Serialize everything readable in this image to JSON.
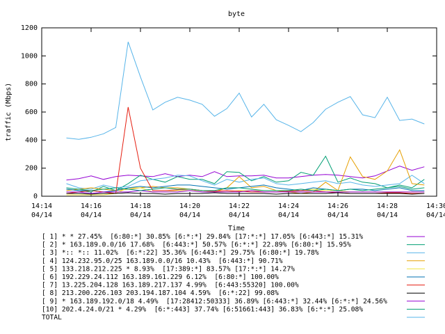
{
  "chart_data": {
    "type": "line",
    "title": "byte",
    "x_label": "Time",
    "y_label": "traffic (Mbps)",
    "x": [
      855,
      855.5,
      856,
      856.5,
      857,
      857.5,
      858,
      858.5,
      859,
      859.5,
      860,
      860.5,
      861,
      861.5,
      862,
      862.5,
      863,
      863.5,
      864,
      864.5,
      865,
      865.5,
      866,
      866.5,
      867,
      867.5,
      868,
      868.5,
      869,
      869.5
    ],
    "xlim": [
      854,
      870
    ],
    "xticks": [
      {
        "value": 854,
        "label": "14:14",
        "date": "04/14"
      },
      {
        "value": 856,
        "label": "14:16",
        "date": "04/14"
      },
      {
        "value": 858,
        "label": "14:18",
        "date": "04/14"
      },
      {
        "value": 860,
        "label": "14:20",
        "date": "04/14"
      },
      {
        "value": 862,
        "label": "14:22",
        "date": "04/14"
      },
      {
        "value": 864,
        "label": "14:24",
        "date": "04/14"
      },
      {
        "value": 866,
        "label": "14:26",
        "date": "04/14"
      },
      {
        "value": 868,
        "label": "14:28",
        "date": "04/14"
      },
      {
        "value": 870,
        "label": "14:30",
        "date": "04/14"
      }
    ],
    "ylim": [
      0,
      1200
    ],
    "yticks": [
      0,
      200,
      400,
      600,
      800,
      1000,
      1200
    ],
    "grid": false,
    "series": [
      {
        "name": "[ 1] * * 27.45%  [6:80:*] 30.85% [6:*:*] 29.84% [17:*:*] 17.05% [6:443:*] 15.31%",
        "color": "#9400d3",
        "values": [
          115,
          125,
          145,
          120,
          140,
          150,
          145,
          140,
          160,
          140,
          150,
          140,
          175,
          140,
          145,
          145,
          150,
          130,
          130,
          140,
          150,
          155,
          150,
          140,
          130,
          145,
          180,
          215,
          185,
          210
        ]
      },
      {
        "name": "[ 2] * 163.189.0.0/16 17.68%  [6:443:*] 50.57% [6:*:*] 22.89% [6:80:*] 15.95%",
        "color": "#009e73",
        "values": [
          50,
          40,
          30,
          70,
          40,
          90,
          150,
          120,
          100,
          140,
          120,
          120,
          90,
          175,
          170,
          110,
          140,
          100,
          110,
          170,
          150,
          285,
          100,
          130,
          100,
          90,
          60,
          80,
          60,
          120
        ]
      },
      {
        "name": "[ 3] *:: *:: 11.02%  [6:*:22] 35.36% [6:443:*] 29.75% [6:80:*] 19.78%",
        "color": "#56b4e9",
        "values": [
          90,
          60,
          50,
          80,
          60,
          70,
          110,
          120,
          130,
          150,
          145,
          110,
          80,
          120,
          100,
          120,
          130,
          90,
          80,
          90,
          100,
          110,
          90,
          100,
          80,
          70,
          80,
          90,
          150,
          90
        ]
      },
      {
        "name": "[ 4] 124.232.95.0/25 163.189.0.0/16 10.43%  [6:443:*] 90.71%",
        "color": "#e69f00",
        "values": [
          40,
          50,
          60,
          50,
          40,
          50,
          60,
          70,
          60,
          60,
          50,
          40,
          30,
          60,
          140,
          60,
          70,
          40,
          30,
          20,
          30,
          100,
          40,
          280,
          140,
          120,
          180,
          330,
          90,
          80
        ]
      },
      {
        "name": "[ 5] 133.218.212.225 * 8.93%  [17:389:*] 83.57% [17:*:*] 14.27%",
        "color": "#f0e442",
        "values": [
          10,
          10,
          10,
          10,
          20,
          60,
          60,
          30,
          30,
          40,
          40,
          40,
          30,
          30,
          40,
          40,
          40,
          40,
          40,
          40,
          50,
          40,
          40,
          30,
          30,
          30,
          30,
          30,
          30,
          30
        ]
      },
      {
        "name": "[ 6] 192.229.24.112 163.189.161.229 6.12%  [6:80:*] 100.00%",
        "color": "#0072b2",
        "values": [
          50,
          40,
          40,
          30,
          40,
          60,
          70,
          60,
          70,
          80,
          80,
          70,
          60,
          50,
          60,
          70,
          80,
          60,
          50,
          40,
          60,
          50,
          40,
          50,
          50,
          40,
          50,
          60,
          40,
          40
        ]
      },
      {
        "name": "[ 7] 13.225.204.128 163.189.217.137 4.99%  [6:443:55320] 100.00%",
        "color": "#e51e10",
        "values": [
          20,
          30,
          40,
          30,
          20,
          635,
          200,
          40,
          40,
          45,
          50,
          40,
          35,
          40,
          35,
          30,
          30,
          30,
          35,
          40,
          40,
          30,
          25,
          20,
          20,
          20,
          25,
          25,
          20,
          20
        ]
      },
      {
        "name": "[ 8] 213.200.226.103 203.194.187.104 4.59%  [6:*:22] 99.08%",
        "color": "#000000",
        "values": [
          20,
          20,
          15,
          20,
          20,
          25,
          20,
          20,
          15,
          20,
          20,
          20,
          25,
          20,
          20,
          20,
          20,
          15,
          20,
          20,
          20,
          20,
          25,
          20,
          20,
          20,
          20,
          20,
          15,
          20
        ]
      },
      {
        "name": "[ 9] * 163.189.192.0/18 4.49%  [17:28412:50333] 36.89% [6:443:*] 32.44% [6:*:*] 24.56%",
        "color": "#9400d3",
        "values": [
          30,
          30,
          20,
          30,
          30,
          30,
          40,
          30,
          30,
          30,
          40,
          30,
          30,
          30,
          30,
          40,
          30,
          30,
          30,
          30,
          30,
          30,
          30,
          30,
          30,
          30,
          30,
          30,
          30,
          30
        ]
      },
      {
        "name": "[10] 202.4.24.0/21 * 4.29%  [6:*:443] 37.74% [6:51661:443] 36.83% [6:*:*] 25.08%",
        "color": "#009e73",
        "values": [
          60,
          50,
          40,
          50,
          60,
          50,
          40,
          50,
          60,
          50,
          50,
          40,
          40,
          60,
          60,
          50,
          40,
          40,
          40,
          50,
          40,
          50,
          40,
          50,
          40,
          50,
          60,
          70,
          50,
          60
        ]
      },
      {
        "name": "TOTAL",
        "color": "#56b4e9",
        "values": [
          415,
          405,
          420,
          445,
          490,
          1100,
          850,
          615,
          670,
          705,
          685,
          655,
          570,
          625,
          735,
          565,
          655,
          545,
          505,
          460,
          525,
          620,
          670,
          710,
          580,
          560,
          705,
          540,
          550,
          515
        ]
      }
    ]
  }
}
